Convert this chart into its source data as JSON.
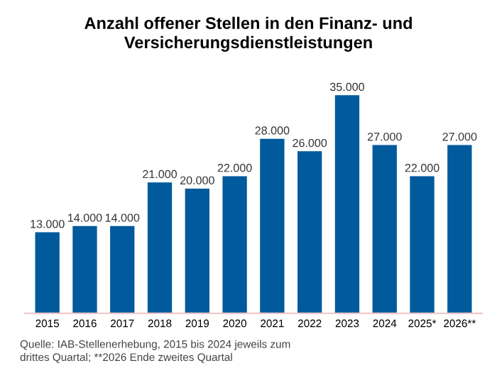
{
  "chart_data": {
    "type": "bar",
    "title": "Anzahl offener Stellen in den Finanz- und\nVersicherungsdienstleistungen",
    "categories": [
      "2015",
      "2016",
      "2017",
      "2018",
      "2019",
      "2020",
      "2021",
      "2022",
      "2023",
      "2024",
      "2025*",
      "2026**"
    ],
    "values": [
      13000,
      14000,
      14000,
      21000,
      20000,
      22000,
      28000,
      26000,
      35000,
      27000,
      22000,
      27000
    ],
    "value_labels": [
      "13.000",
      "14.000",
      "14.000",
      "21.000",
      "20.000",
      "22.000",
      "28.000",
      "26.000",
      "35.000",
      "27.000",
      "22.000",
      "27.000"
    ],
    "color": "#005a9c",
    "annotations": [
      "Quelle: IAB-Stellenerhebung, 2015 bis 2024 jeweils zum",
      "drittes Quartal; **2026 Ende zweites Quartal"
    ]
  }
}
